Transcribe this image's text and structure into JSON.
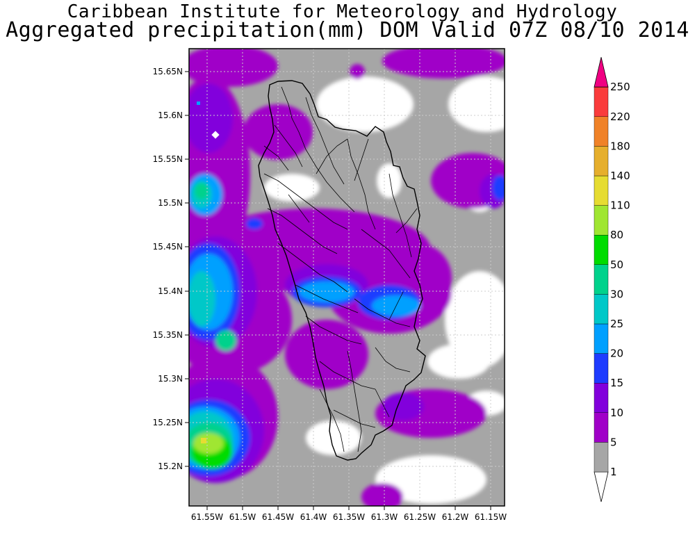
{
  "header": {
    "line1": "Caribbean Institute for Meteorology and Hydrology",
    "line2": "Aggregated precipitation(mm) DOM Valid 07Z 08/10 2014"
  },
  "map": {
    "lat_ticks": [
      "15.65N",
      "15.6N",
      "15.55N",
      "15.5N",
      "15.45N",
      "15.4N",
      "15.35N",
      "15.3N",
      "15.25N",
      "15.2N"
    ],
    "lon_ticks": [
      "61.55W",
      "61.5W",
      "61.45W",
      "61.4W",
      "61.35W",
      "61.3W",
      "61.25W",
      "61.2W",
      "61.15W"
    ],
    "lat_range": [
      15.155,
      15.68
    ],
    "lon_range": [
      61.565,
      61.14
    ],
    "grid": true,
    "feature": "Dominica island outline with drainage network"
  },
  "colorbar": {
    "labels": [
      "1",
      "5",
      "10",
      "15",
      "20",
      "25",
      "30",
      "50",
      "80",
      "110",
      "140",
      "180",
      "220",
      "250"
    ],
    "colors": [
      "#ffffff",
      "#a6a6a6",
      "#a000c8",
      "#8200dc",
      "#1e3cff",
      "#00a0ff",
      "#00c8c8",
      "#00d28c",
      "#00dc00",
      "#a0e632",
      "#e6dc32",
      "#e6af2d",
      "#f08228",
      "#fa3c3c",
      "#f00082"
    ]
  }
}
